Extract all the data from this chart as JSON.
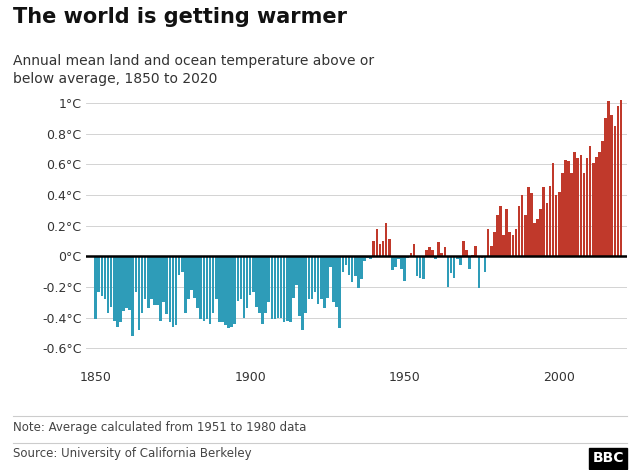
{
  "title": "The world is getting warmer",
  "subtitle": "Annual mean land and ocean temperature above or\nbelow average, 1850 to 2020",
  "note": "Note: Average calculated from 1951 to 1980 data",
  "source": "Source: University of California Berkeley",
  "ylim": [
    -0.72,
    1.12
  ],
  "yticks": [
    -0.6,
    -0.4,
    -0.2,
    0.0,
    0.2,
    0.4,
    0.6,
    0.8,
    1.0
  ],
  "ytick_labels": [
    "-0.6°C",
    "-0.4°C",
    "-0.2°C",
    "0°C",
    "0.2°C",
    "0.4°C",
    "0.6°C",
    "0.8°C",
    "1°C"
  ],
  "xlim": [
    1847,
    2022
  ],
  "xticks": [
    1850,
    1900,
    1950,
    2000
  ],
  "color_positive": "#C0392B",
  "color_negative": "#2E9CB8",
  "background_color": "#ffffff",
  "years": [
    1850,
    1851,
    1852,
    1853,
    1854,
    1855,
    1856,
    1857,
    1858,
    1859,
    1860,
    1861,
    1862,
    1863,
    1864,
    1865,
    1866,
    1867,
    1868,
    1869,
    1870,
    1871,
    1872,
    1873,
    1874,
    1875,
    1876,
    1877,
    1878,
    1879,
    1880,
    1881,
    1882,
    1883,
    1884,
    1885,
    1886,
    1887,
    1888,
    1889,
    1890,
    1891,
    1892,
    1893,
    1894,
    1895,
    1896,
    1897,
    1898,
    1899,
    1900,
    1901,
    1902,
    1903,
    1904,
    1905,
    1906,
    1907,
    1908,
    1909,
    1910,
    1911,
    1912,
    1913,
    1914,
    1915,
    1916,
    1917,
    1918,
    1919,
    1920,
    1921,
    1922,
    1923,
    1924,
    1925,
    1926,
    1927,
    1928,
    1929,
    1930,
    1931,
    1932,
    1933,
    1934,
    1935,
    1936,
    1937,
    1938,
    1939,
    1940,
    1941,
    1942,
    1943,
    1944,
    1945,
    1946,
    1947,
    1948,
    1949,
    1950,
    1951,
    1952,
    1953,
    1954,
    1955,
    1956,
    1957,
    1958,
    1959,
    1960,
    1961,
    1962,
    1963,
    1964,
    1965,
    1966,
    1967,
    1968,
    1969,
    1970,
    1971,
    1972,
    1973,
    1974,
    1975,
    1976,
    1977,
    1978,
    1979,
    1980,
    1981,
    1982,
    1983,
    1984,
    1985,
    1986,
    1987,
    1988,
    1989,
    1990,
    1991,
    1992,
    1993,
    1994,
    1995,
    1996,
    1997,
    1998,
    1999,
    2000,
    2001,
    2002,
    2003,
    2004,
    2005,
    2006,
    2007,
    2008,
    2009,
    2010,
    2011,
    2012,
    2013,
    2014,
    2015,
    2016,
    2017,
    2018,
    2019,
    2020
  ],
  "anomalies": [
    -0.41,
    -0.23,
    -0.26,
    -0.28,
    -0.37,
    -0.33,
    -0.42,
    -0.46,
    -0.43,
    -0.36,
    -0.34,
    -0.35,
    -0.52,
    -0.23,
    -0.48,
    -0.37,
    -0.28,
    -0.34,
    -0.28,
    -0.32,
    -0.32,
    -0.42,
    -0.3,
    -0.38,
    -0.43,
    -0.46,
    -0.45,
    -0.12,
    -0.1,
    -0.37,
    -0.28,
    -0.22,
    -0.27,
    -0.34,
    -0.41,
    -0.42,
    -0.41,
    -0.44,
    -0.37,
    -0.28,
    -0.43,
    -0.43,
    -0.45,
    -0.47,
    -0.46,
    -0.44,
    -0.29,
    -0.28,
    -0.4,
    -0.34,
    -0.25,
    -0.23,
    -0.33,
    -0.37,
    -0.44,
    -0.37,
    -0.3,
    -0.41,
    -0.41,
    -0.4,
    -0.4,
    -0.43,
    -0.42,
    -0.43,
    -0.27,
    -0.19,
    -0.39,
    -0.48,
    -0.37,
    -0.28,
    -0.28,
    -0.23,
    -0.31,
    -0.28,
    -0.34,
    -0.27,
    -0.07,
    -0.3,
    -0.33,
    -0.47,
    -0.1,
    -0.06,
    -0.12,
    -0.17,
    -0.13,
    -0.21,
    -0.15,
    -0.03,
    -0.01,
    -0.02,
    0.1,
    0.18,
    0.08,
    0.1,
    0.22,
    0.11,
    -0.09,
    -0.07,
    -0.02,
    -0.08,
    -0.16,
    -0.01,
    0.02,
    0.08,
    -0.13,
    -0.14,
    -0.15,
    0.04,
    0.06,
    0.04,
    -0.02,
    0.09,
    0.02,
    0.06,
    -0.2,
    -0.11,
    -0.14,
    -0.02,
    -0.06,
    0.1,
    0.04,
    -0.08,
    0.01,
    0.07,
    -0.21,
    -0.01,
    -0.1,
    0.18,
    0.07,
    0.16,
    0.27,
    0.33,
    0.14,
    0.31,
    0.16,
    0.14,
    0.18,
    0.33,
    0.4,
    0.27,
    0.45,
    0.41,
    0.22,
    0.24,
    0.31,
    0.45,
    0.35,
    0.46,
    0.61,
    0.4,
    0.42,
    0.54,
    0.63,
    0.62,
    0.54,
    0.68,
    0.64,
    0.66,
    0.54,
    0.64,
    0.72,
    0.61,
    0.65,
    0.68,
    0.75,
    0.9,
    1.01,
    0.92,
    0.85,
    0.98,
    1.02
  ]
}
